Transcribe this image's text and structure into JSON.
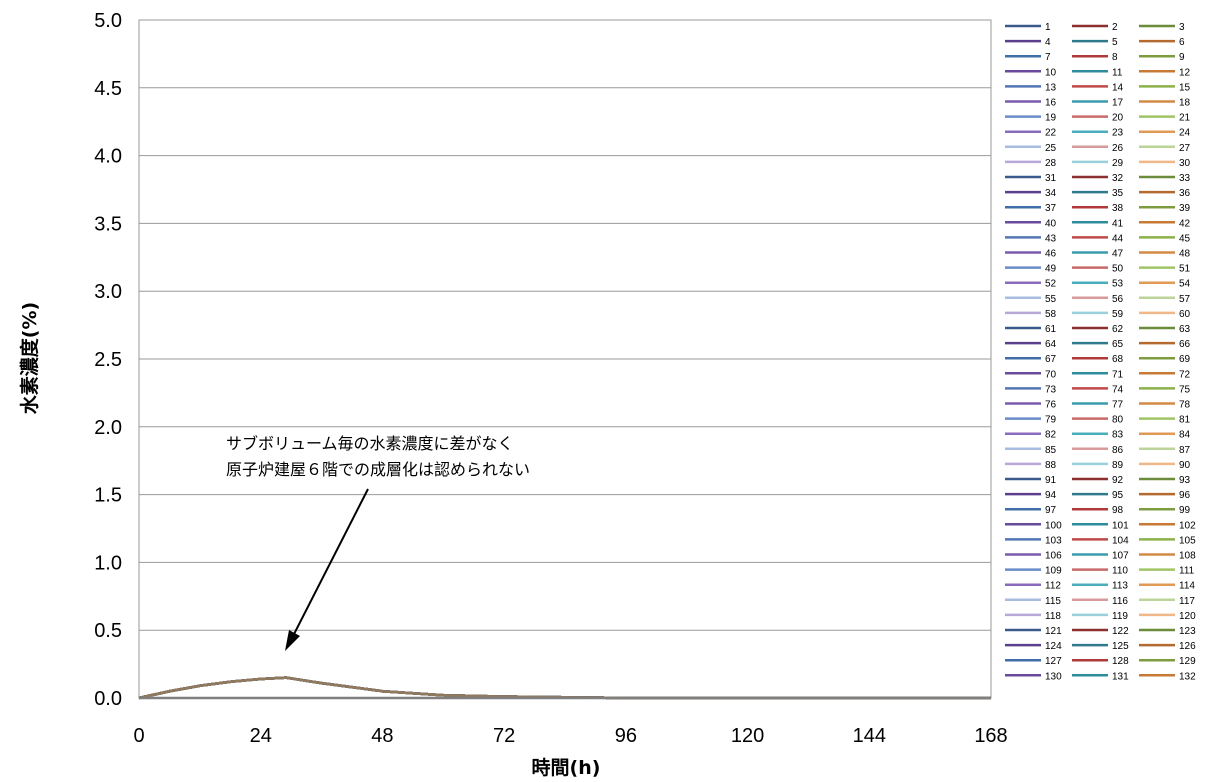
{
  "chart_data": {
    "type": "line",
    "xlabel": "時間(h)",
    "ylabel": "水素濃度(%)",
    "xlim": [
      0,
      168
    ],
    "ylim": [
      0,
      5.0
    ],
    "x_ticks": [
      "0",
      "24",
      "48",
      "72",
      "96",
      "120",
      "144",
      "168"
    ],
    "y_ticks": [
      "0.0",
      "0.5",
      "1.0",
      "1.5",
      "2.0",
      "2.5",
      "3.0",
      "3.5",
      "4.0",
      "4.5",
      "5.0"
    ],
    "grid": "horizontal",
    "legend_position": "right",
    "legend_columns": 3,
    "series_count": 132,
    "series_names": [
      "1",
      "2",
      "3",
      "4",
      "5",
      "6",
      "7",
      "8",
      "9",
      "10",
      "11",
      "12",
      "13",
      "14",
      "15",
      "16",
      "17",
      "18",
      "19",
      "20",
      "21",
      "22",
      "23",
      "24",
      "25",
      "26",
      "27",
      "28",
      "29",
      "30",
      "31",
      "32",
      "33",
      "34",
      "35",
      "36",
      "37",
      "38",
      "39",
      "40",
      "41",
      "42",
      "43",
      "44",
      "45",
      "46",
      "47",
      "48",
      "49",
      "50",
      "51",
      "52",
      "53",
      "54",
      "55",
      "56",
      "57",
      "58",
      "59",
      "60",
      "61",
      "62",
      "63",
      "64",
      "65",
      "66",
      "67",
      "68",
      "69",
      "70",
      "71",
      "72",
      "73",
      "74",
      "75",
      "76",
      "77",
      "78",
      "79",
      "80",
      "81",
      "82",
      "83",
      "84",
      "85",
      "86",
      "87",
      "88",
      "89",
      "90",
      "91",
      "92",
      "93",
      "94",
      "95",
      "96",
      "97",
      "98",
      "99",
      "100",
      "101",
      "102",
      "103",
      "104",
      "105",
      "106",
      "107",
      "108",
      "109",
      "110",
      "111",
      "112",
      "113",
      "114",
      "115",
      "116",
      "117",
      "118",
      "119",
      "120",
      "121",
      "122",
      "123",
      "124",
      "125",
      "126",
      "127",
      "128",
      "129",
      "130",
      "131",
      "132"
    ],
    "series_colors": [
      "#3a5a8c",
      "#8c2f2f",
      "#6b8c3a",
      "#5c3f8c",
      "#2f7a8c",
      "#b4692f",
      "#3f6ea8",
      "#b03a3a",
      "#7d9c3f",
      "#6a4a9c",
      "#2f8c9c",
      "#c77a36",
      "#5277b4",
      "#c04a4a",
      "#8cb04a",
      "#7a5aac",
      "#3a9cac",
      "#d48a46",
      "#6a8cc8",
      "#c86a6a",
      "#a0c466",
      "#8a6abc",
      "#4aacbc",
      "#e09a56",
      "#a8bce0",
      "#d89a9a",
      "#bcd49a",
      "#b8a8d8",
      "#9ad0dc",
      "#f0b888"
    ],
    "series_common": {
      "x": [
        0,
        6,
        12,
        18,
        24,
        29,
        36,
        48,
        60,
        72,
        96,
        120,
        144,
        168
      ],
      "y": [
        0.0,
        0.05,
        0.09,
        0.12,
        0.14,
        0.15,
        0.11,
        0.05,
        0.02,
        0.01,
        0.0,
        0.0,
        0.0,
        0.0
      ]
    },
    "flat_series": {
      "x": [
        0,
        168
      ],
      "y": [
        0.0,
        0.0
      ]
    },
    "annotation": {
      "lines": [
        "サブボリューム毎の水素濃度に差がなく",
        "原子炉建屋６階での成層化は認められない"
      ],
      "arrow_to": [
        28,
        0.35
      ]
    }
  }
}
